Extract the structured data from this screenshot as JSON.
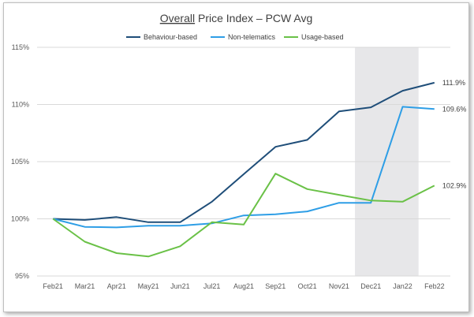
{
  "chart_data": {
    "type": "line",
    "title_underlined": "Overall",
    "title_rest": " Price Index – PCW Avg",
    "categories": [
      "Feb21",
      "Mar21",
      "Apr21",
      "May21",
      "Jun21",
      "Jul21",
      "Aug21",
      "Sep21",
      "Oct21",
      "Nov21",
      "Dec21",
      "Jan22",
      "Feb22"
    ],
    "ylim": [
      95,
      115
    ],
    "yticks": [
      95,
      100,
      105,
      110,
      115
    ],
    "ytick_labels": [
      "95%",
      "100%",
      "105%",
      "110%",
      "115%"
    ],
    "grid": "horizontal",
    "legend_position": "top-center",
    "shaded_region": {
      "from": "Dec21",
      "to": "Jan22",
      "color": "#e7e7e9"
    },
    "series": [
      {
        "name": "Behaviour-based",
        "color": "#1f4e79",
        "values": [
          100.0,
          99.9,
          100.15,
          99.7,
          99.7,
          101.5,
          103.9,
          106.3,
          106.9,
          109.4,
          109.75,
          111.2,
          111.9
        ],
        "end_label": "111.9%"
      },
      {
        "name": "Non-telematics",
        "color": "#2e9ee6",
        "values": [
          100.0,
          99.3,
          99.25,
          99.4,
          99.4,
          99.6,
          100.3,
          100.4,
          100.65,
          101.4,
          101.4,
          109.8,
          109.6
        ],
        "end_label": "109.6%"
      },
      {
        "name": "Usage-based",
        "color": "#6ac147",
        "values": [
          100.0,
          98.0,
          97.0,
          96.7,
          97.6,
          99.7,
          99.5,
          103.95,
          102.6,
          102.1,
          101.6,
          101.5,
          102.9
        ],
        "end_label": "102.9%"
      }
    ]
  }
}
